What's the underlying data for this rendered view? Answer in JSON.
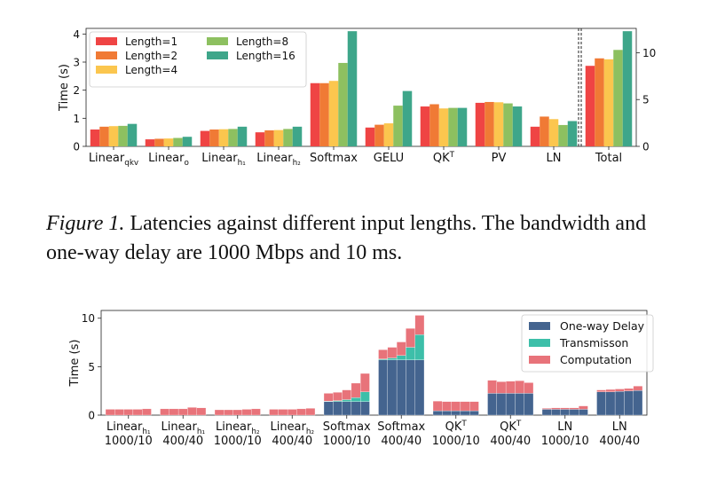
{
  "caption": {
    "label": "Figure 1.",
    "text": "Latencies against different input lengths. The bandwidth and one-way delay are 1000 Mbps and 10 ms."
  },
  "chart_data": [
    {
      "type": "bar",
      "title": "",
      "ylabel": "Time (s)",
      "ylim": [
        0,
        4.2
      ],
      "y2lim": [
        0,
        12.6
      ],
      "yticks": [
        0,
        1,
        2,
        3,
        4
      ],
      "y2ticks": [
        0,
        5,
        10
      ],
      "legend_position": "top-left",
      "categories": [
        {
          "base": "Linear",
          "sub": "qkv"
        },
        {
          "base": "Linear",
          "sub": "o"
        },
        {
          "base": "Linear",
          "sub": "h₁"
        },
        {
          "base": "Linear",
          "sub": "h₂"
        },
        {
          "base": "Softmax",
          "sub": ""
        },
        {
          "base": "GELU",
          "sub": ""
        },
        {
          "base": "QK",
          "sup": "T"
        },
        {
          "base": "PV",
          "sub": ""
        },
        {
          "base": "LN",
          "sub": ""
        },
        {
          "base": "Total",
          "sub": "",
          "secondary_axis": true
        }
      ],
      "series": [
        {
          "name": "Length=1",
          "color": "#ef4444",
          "values": [
            0.6,
            0.25,
            0.55,
            0.5,
            2.25,
            0.67,
            1.42,
            1.55,
            0.7,
            8.6
          ]
        },
        {
          "name": "Length=2",
          "color": "#f07a35",
          "values": [
            0.7,
            0.27,
            0.6,
            0.57,
            2.25,
            0.77,
            1.5,
            1.58,
            1.06,
            9.4
          ]
        },
        {
          "name": "Length=4",
          "color": "#fbc64e",
          "values": [
            0.72,
            0.28,
            0.61,
            0.58,
            2.33,
            0.82,
            1.35,
            1.57,
            0.97,
            9.3
          ]
        },
        {
          "name": "Length=8",
          "color": "#8dc060",
          "values": [
            0.73,
            0.3,
            0.62,
            0.62,
            2.97,
            1.45,
            1.37,
            1.53,
            0.76,
            10.3
          ]
        },
        {
          "name": "Length=16",
          "color": "#3ea68a",
          "values": [
            0.8,
            0.34,
            0.7,
            0.7,
            4.1,
            1.97,
            1.37,
            1.42,
            0.9,
            12.3
          ]
        }
      ]
    },
    {
      "type": "bar",
      "stacked": true,
      "title": "",
      "ylabel": "Time (s)",
      "ylim": [
        0,
        10.8
      ],
      "yticks": [
        0,
        5,
        10
      ],
      "legend_position": "top-right",
      "bars_per_group": 5,
      "groups": [
        {
          "base": "Linear",
          "sub": "h₁",
          "line2": "1000/10"
        },
        {
          "base": "Linear",
          "sub": "h₁",
          "line2": "400/40"
        },
        {
          "base": "Linear",
          "sub": "h₂",
          "line2": "1000/10"
        },
        {
          "base": "Linear",
          "sub": "h₂",
          "line2": "400/40"
        },
        {
          "base": "Softmax",
          "sub": "",
          "line2": "1000/10"
        },
        {
          "base": "Softmax",
          "sub": "",
          "line2": "400/40"
        },
        {
          "base": "QK",
          "sup": "T",
          "line2": "1000/10"
        },
        {
          "base": "QK",
          "sup": "T",
          "line2": "400/40"
        },
        {
          "base": "LN",
          "sub": "",
          "line2": "1000/10"
        },
        {
          "base": "LN",
          "sub": "",
          "line2": "400/40"
        }
      ],
      "series": [
        {
          "name": "One-way Delay",
          "color": "#44648f",
          "values": [
            [
              0,
              0,
              0,
              0,
              0
            ],
            [
              0,
              0,
              0,
              0,
              0
            ],
            [
              0,
              0,
              0,
              0,
              0
            ],
            [
              0,
              0,
              0,
              0,
              0
            ],
            [
              1.4,
              1.4,
              1.4,
              1.4,
              1.4
            ],
            [
              5.7,
              5.7,
              5.7,
              5.7,
              5.7
            ],
            [
              0.45,
              0.45,
              0.45,
              0.45,
              0.45
            ],
            [
              2.25,
              2.25,
              2.25,
              2.25,
              2.25
            ],
            [
              0.6,
              0.6,
              0.6,
              0.6,
              0.6
            ],
            [
              2.4,
              2.4,
              2.45,
              2.5,
              2.55
            ]
          ]
        },
        {
          "name": "Transmisson",
          "color": "#3dbfa9",
          "values": [
            [
              0,
              0,
              0,
              0,
              0
            ],
            [
              0,
              0,
              0,
              0,
              0
            ],
            [
              0,
              0,
              0,
              0,
              0
            ],
            [
              0,
              0,
              0,
              0,
              0
            ],
            [
              0.05,
              0.1,
              0.2,
              0.4,
              1.0
            ],
            [
              0.1,
              0.2,
              0.45,
              1.3,
              2.6
            ],
            [
              0,
              0,
              0,
              0,
              0
            ],
            [
              0,
              0,
              0,
              0,
              0
            ],
            [
              0,
              0,
              0,
              0,
              0
            ],
            [
              0,
              0,
              0,
              0,
              0
            ]
          ]
        },
        {
          "name": "Computation",
          "color": "#e8737a",
          "values": [
            [
              0.6,
              0.6,
              0.6,
              0.6,
              0.65
            ],
            [
              0.65,
              0.65,
              0.65,
              0.8,
              0.75
            ],
            [
              0.55,
              0.55,
              0.55,
              0.6,
              0.65
            ],
            [
              0.6,
              0.6,
              0.6,
              0.65,
              0.7
            ],
            [
              0.8,
              0.85,
              1.0,
              1.5,
              1.9
            ],
            [
              0.95,
              1.1,
              1.4,
              1.95,
              2.0
            ],
            [
              1.0,
              0.95,
              0.95,
              0.95,
              0.95
            ],
            [
              1.35,
              1.2,
              1.25,
              1.3,
              1.1
            ],
            [
              0.1,
              0.15,
              0.15,
              0.15,
              0.35
            ],
            [
              0.2,
              0.25,
              0.25,
              0.25,
              0.45
            ]
          ]
        }
      ]
    }
  ]
}
